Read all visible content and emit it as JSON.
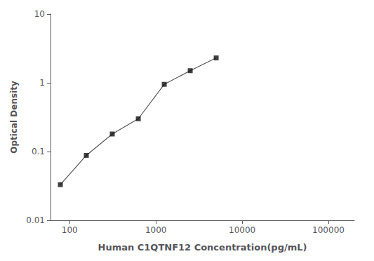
{
  "chart_data": {
    "type": "line",
    "x": [
      78,
      156,
      312,
      625,
      1250,
      2500,
      5000
    ],
    "series": [
      {
        "type": "line",
        "color": "#555555",
        "values": [
          0.033,
          0.088,
          0.18,
          0.3,
          0.95,
          1.5,
          2.3
        ]
      },
      {
        "type": "scatter",
        "color": "#111111",
        "marker": "square",
        "values": [
          0.033,
          0.088,
          0.18,
          0.3,
          0.95,
          1.5,
          2.3
        ]
      }
    ],
    "xlabel": "Human C1QTNF12 Concentration(pg/mL)",
    "ylabel": "Optical Density",
    "xlim": [
      60,
      200000
    ],
    "ylim": [
      0.01,
      10
    ],
    "xticks": [
      100,
      1000,
      10000,
      100000
    ],
    "yticks": [
      0.01,
      0.1,
      1,
      10
    ],
    "log": true,
    "grid": false
  }
}
